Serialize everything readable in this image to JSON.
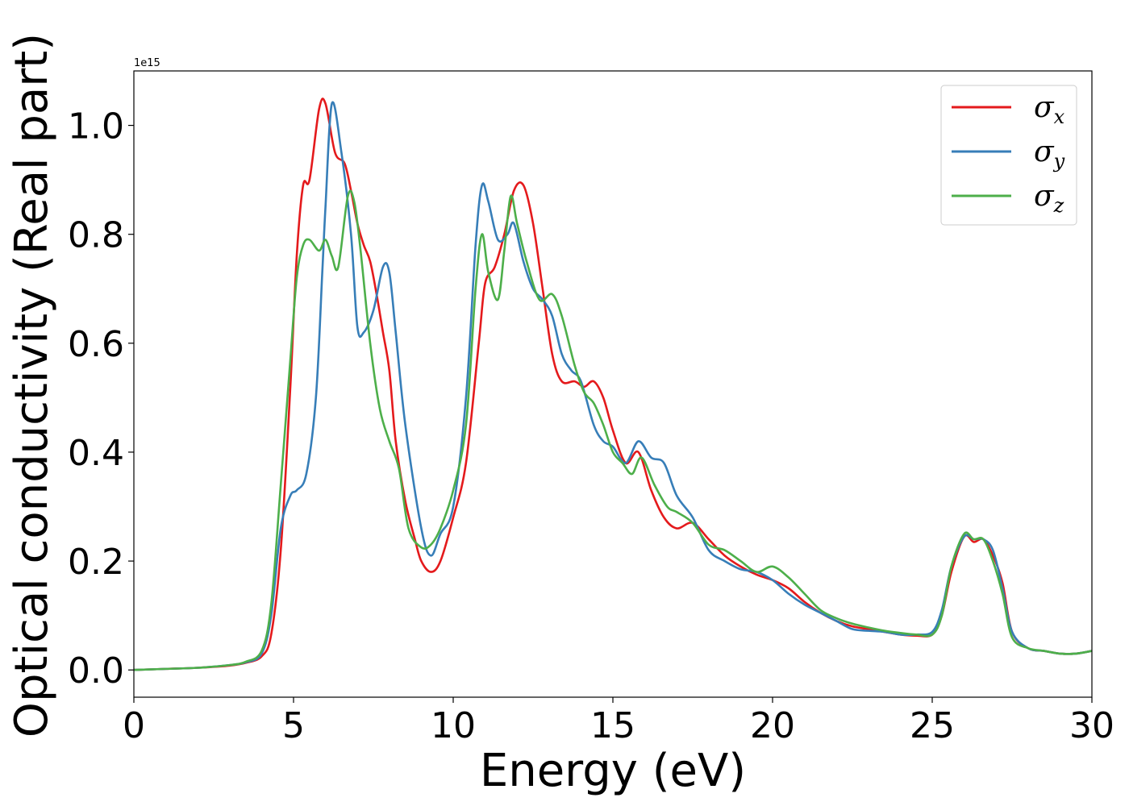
{
  "chart_data": {
    "type": "line",
    "xlabel": "Energy (eV)",
    "ylabel": "Optical conductivity (Real part)",
    "y_scale_label": "1e15",
    "xlim": [
      0,
      30
    ],
    "ylim": [
      -0.05,
      1.1
    ],
    "x_ticks": [
      "0",
      "5",
      "10",
      "15",
      "20",
      "25",
      "30"
    ],
    "y_ticks": [
      "0.0",
      "0.2",
      "0.4",
      "0.6",
      "0.8",
      "1.0"
    ],
    "grid": false,
    "legend_position": "top-right",
    "series": [
      {
        "name": "σx",
        "symbol": "σ",
        "subscript": "x",
        "color": "#e41a1c",
        "x": [
          0,
          1,
          2,
          3,
          3.5,
          4,
          4.3,
          4.6,
          4.9,
          5.1,
          5.3,
          5.5,
          5.8,
          6.0,
          6.3,
          6.6,
          6.8,
          7.0,
          7.2,
          7.4,
          7.6,
          7.8,
          8.0,
          8.2,
          8.5,
          8.8,
          9.0,
          9.3,
          9.6,
          10.0,
          10.4,
          10.8,
          11.0,
          11.3,
          11.6,
          11.9,
          12.2,
          12.5,
          12.8,
          13.1,
          13.4,
          13.8,
          14.1,
          14.4,
          14.7,
          15.0,
          15.4,
          15.8,
          16.2,
          16.6,
          17.0,
          17.5,
          18.0,
          18.5,
          19.0,
          19.5,
          20.0,
          20.5,
          21.0,
          21.5,
          22.0,
          22.5,
          23.0,
          23.5,
          24.0,
          24.5,
          25.0,
          25.3,
          25.6,
          26.0,
          26.3,
          26.6,
          26.9,
          27.2,
          27.5,
          28.0,
          28.5,
          29.0,
          29.5,
          30.0
        ],
        "y": [
          0,
          0.002,
          0.004,
          0.008,
          0.013,
          0.025,
          0.065,
          0.22,
          0.52,
          0.76,
          0.89,
          0.9,
          1.03,
          1.04,
          0.95,
          0.93,
          0.88,
          0.82,
          0.78,
          0.75,
          0.69,
          0.62,
          0.55,
          0.42,
          0.31,
          0.24,
          0.2,
          0.18,
          0.2,
          0.28,
          0.38,
          0.6,
          0.71,
          0.74,
          0.8,
          0.88,
          0.89,
          0.82,
          0.7,
          0.58,
          0.53,
          0.53,
          0.52,
          0.53,
          0.5,
          0.44,
          0.38,
          0.4,
          0.33,
          0.28,
          0.26,
          0.27,
          0.24,
          0.21,
          0.19,
          0.175,
          0.165,
          0.15,
          0.125,
          0.105,
          0.09,
          0.08,
          0.075,
          0.07,
          0.065,
          0.063,
          0.065,
          0.1,
          0.18,
          0.245,
          0.235,
          0.24,
          0.21,
          0.16,
          0.07,
          0.04,
          0.035,
          0.03,
          0.03,
          0.035
        ]
      },
      {
        "name": "σy",
        "symbol": "σ",
        "subscript": "y",
        "color": "#377eb8",
        "x": [
          0,
          1,
          2,
          3,
          3.5,
          4,
          4.3,
          4.6,
          4.9,
          5.1,
          5.4,
          5.7,
          5.9,
          6.0,
          6.2,
          6.5,
          6.8,
          7.0,
          7.2,
          7.5,
          7.8,
          8.0,
          8.2,
          8.5,
          9.0,
          9.3,
          9.6,
          10.0,
          10.4,
          10.7,
          10.9,
          11.1,
          11.4,
          11.7,
          11.9,
          12.2,
          12.5,
          12.8,
          13.1,
          13.4,
          13.7,
          14.0,
          14.4,
          14.7,
          15.0,
          15.4,
          15.8,
          16.2,
          16.6,
          17.0,
          17.5,
          18.0,
          18.5,
          19.0,
          19.5,
          20.0,
          20.5,
          21.0,
          21.5,
          22.0,
          22.5,
          23.0,
          23.5,
          24.0,
          24.5,
          25.0,
          25.3,
          25.6,
          26.0,
          26.3,
          26.6,
          26.9,
          27.2,
          27.5,
          28.0,
          28.5,
          29.0,
          29.5,
          30.0
        ],
        "y": [
          0,
          0.002,
          0.004,
          0.009,
          0.014,
          0.03,
          0.1,
          0.26,
          0.32,
          0.33,
          0.36,
          0.5,
          0.73,
          0.85,
          1.04,
          0.95,
          0.8,
          0.63,
          0.62,
          0.66,
          0.74,
          0.73,
          0.62,
          0.45,
          0.26,
          0.21,
          0.25,
          0.3,
          0.5,
          0.78,
          0.89,
          0.86,
          0.79,
          0.8,
          0.82,
          0.75,
          0.7,
          0.68,
          0.65,
          0.58,
          0.55,
          0.53,
          0.45,
          0.42,
          0.41,
          0.38,
          0.42,
          0.39,
          0.38,
          0.32,
          0.28,
          0.22,
          0.2,
          0.185,
          0.18,
          0.165,
          0.14,
          0.12,
          0.105,
          0.09,
          0.075,
          0.072,
          0.07,
          0.065,
          0.065,
          0.07,
          0.11,
          0.19,
          0.245,
          0.24,
          0.24,
          0.22,
          0.15,
          0.07,
          0.04,
          0.035,
          0.03,
          0.03,
          0.035
        ]
      },
      {
        "name": "σz",
        "symbol": "σ",
        "subscript": "z",
        "color": "#4daf4a",
        "x": [
          0,
          1,
          2,
          3,
          3.5,
          4,
          4.3,
          4.6,
          4.9,
          5.1,
          5.3,
          5.5,
          5.8,
          6.0,
          6.2,
          6.4,
          6.7,
          6.9,
          7.1,
          7.4,
          7.7,
          8.0,
          8.3,
          8.6,
          9.0,
          9.3,
          9.6,
          10.0,
          10.4,
          10.7,
          10.9,
          11.1,
          11.4,
          11.6,
          11.8,
          12.0,
          12.3,
          12.7,
          13.1,
          13.4,
          13.8,
          14.1,
          14.4,
          14.7,
          15.0,
          15.3,
          15.6,
          15.9,
          16.3,
          16.7,
          17.0,
          17.5,
          18.0,
          18.5,
          19.0,
          19.5,
          20.0,
          20.5,
          21.0,
          21.5,
          22.0,
          22.5,
          23.0,
          23.5,
          24.0,
          24.5,
          25.0,
          25.3,
          25.6,
          26.0,
          26.3,
          26.6,
          26.9,
          27.2,
          27.5,
          28.0,
          28.5,
          29.0,
          29.5,
          30.0
        ],
        "y": [
          0,
          0.002,
          0.004,
          0.009,
          0.015,
          0.035,
          0.12,
          0.34,
          0.57,
          0.72,
          0.78,
          0.79,
          0.77,
          0.79,
          0.76,
          0.74,
          0.87,
          0.86,
          0.77,
          0.6,
          0.48,
          0.42,
          0.37,
          0.26,
          0.225,
          0.23,
          0.26,
          0.33,
          0.45,
          0.7,
          0.8,
          0.73,
          0.68,
          0.77,
          0.87,
          0.82,
          0.75,
          0.68,
          0.69,
          0.65,
          0.56,
          0.51,
          0.49,
          0.45,
          0.4,
          0.38,
          0.36,
          0.39,
          0.34,
          0.3,
          0.29,
          0.27,
          0.23,
          0.22,
          0.2,
          0.18,
          0.19,
          0.17,
          0.14,
          0.11,
          0.095,
          0.085,
          0.078,
          0.072,
          0.068,
          0.065,
          0.065,
          0.1,
          0.19,
          0.25,
          0.24,
          0.24,
          0.2,
          0.14,
          0.06,
          0.04,
          0.035,
          0.03,
          0.03,
          0.035
        ]
      }
    ]
  }
}
